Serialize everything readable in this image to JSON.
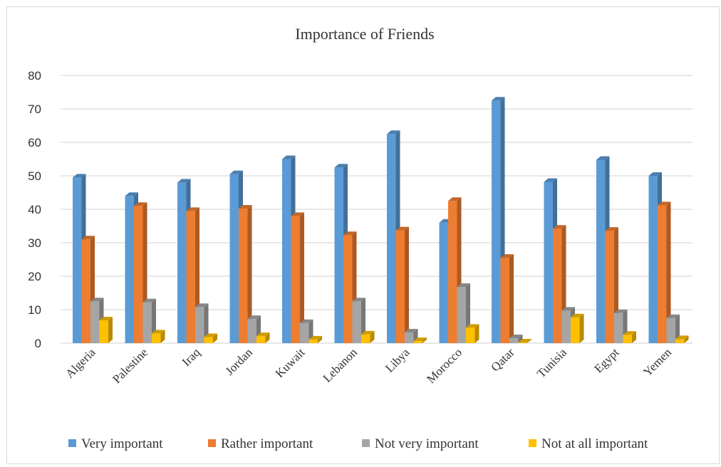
{
  "chart_data": {
    "type": "bar",
    "title": "Importance of Friends",
    "xlabel": "",
    "ylabel": "",
    "ylim": [
      0,
      80
    ],
    "yticks": [
      0,
      10,
      20,
      30,
      40,
      50,
      60,
      70,
      80
    ],
    "grid": true,
    "legend_position": "bottom",
    "categories": [
      "Algeria",
      "Palestine",
      "Iraq",
      "Jordan",
      "Kuwait",
      "Lebanon",
      "Libya",
      "Morocco",
      "Qatar",
      "Tunisia",
      "Egypt",
      "Yemen"
    ],
    "series": [
      {
        "name": "Very important",
        "color": "#5b9bd5",
        "values": [
          49.5,
          44,
          48,
          50.5,
          55,
          52.5,
          62.5,
          36,
          72.5,
          48.2,
          54.8,
          50
        ]
      },
      {
        "name": "Rather important",
        "color": "#ed7d31",
        "values": [
          31,
          41,
          39.5,
          40.2,
          38,
          32.3,
          33.7,
          42.5,
          25.5,
          34.2,
          33.6,
          41.2
        ]
      },
      {
        "name": "Not very important",
        "color": "#a5a5a5",
        "values": [
          12.5,
          12.2,
          10.8,
          7.2,
          6,
          12.5,
          3.2,
          16.8,
          1.5,
          9.7,
          9,
          7.5
        ]
      },
      {
        "name": "Not at all important",
        "color": "#ffc000",
        "values": [
          6.8,
          2.9,
          1.8,
          2.1,
          1.1,
          2.6,
          0.6,
          4.6,
          0.2,
          7.7,
          2.5,
          1.2
        ]
      }
    ]
  }
}
